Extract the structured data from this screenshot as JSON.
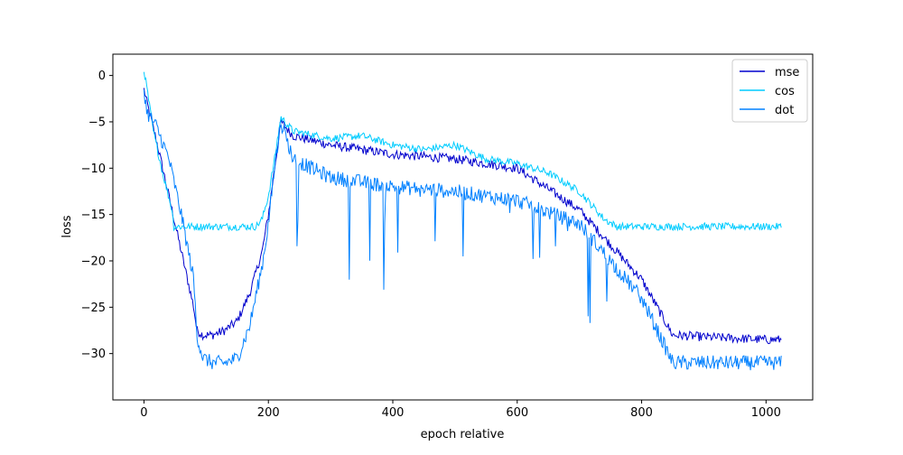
{
  "chart_data": {
    "type": "line",
    "title": "",
    "xlabel": "epoch relative",
    "ylabel": "loss",
    "xlim": [
      -50,
      1075
    ],
    "ylim": [
      -35,
      2.3
    ],
    "xticks": [
      0,
      200,
      400,
      600,
      800,
      1000
    ],
    "yticks": [
      0,
      -5,
      -10,
      -15,
      -20,
      -25,
      -30
    ],
    "grid": false,
    "legend_position": "top-right",
    "series": [
      {
        "name": "mse",
        "color": "#0000cd",
        "noise": 0.5,
        "x": [
          0,
          5,
          20,
          40,
          60,
          80,
          85,
          95,
          110,
          130,
          150,
          170,
          190,
          200,
          210,
          220,
          240,
          300,
          400,
          500,
          600,
          700,
          800,
          850,
          900,
          1000,
          1025
        ],
        "y": [
          -1.5,
          -3,
          -7,
          -13,
          -19,
          -25,
          -27.5,
          -28,
          -28,
          -27.5,
          -26.5,
          -23.5,
          -19,
          -15,
          -10,
          -5,
          -6.5,
          -7.5,
          -8.5,
          -9,
          -10,
          -14.5,
          -22,
          -28,
          -28.2,
          -28.5,
          -28.5
        ]
      },
      {
        "name": "cos",
        "color": "#00ccff",
        "noise": 0.4,
        "x": [
          0,
          5,
          15,
          30,
          45,
          48,
          180,
          190,
          200,
          210,
          220,
          240,
          300,
          350,
          400,
          450,
          500,
          550,
          600,
          650,
          700,
          740,
          760,
          780,
          1025
        ],
        "y": [
          0.6,
          -1.5,
          -6,
          -10.5,
          -14.5,
          -16.3,
          -16.3,
          -15.5,
          -13,
          -9,
          -4.5,
          -6,
          -6.8,
          -6.5,
          -7.5,
          -8,
          -7.5,
          -9,
          -9.5,
          -10.5,
          -12.5,
          -15.5,
          -16.3,
          -16.3,
          -16.3
        ]
      },
      {
        "name": "dot",
        "color": "#0080ff",
        "noise": 0.8,
        "x": [
          0,
          5,
          20,
          40,
          60,
          80,
          85,
          95,
          110,
          130,
          150,
          170,
          190,
          200,
          210,
          220,
          240,
          300,
          400,
          500,
          600,
          700,
          800,
          850,
          900,
          1000,
          1025
        ],
        "y": [
          -1.5,
          -4,
          -5.5,
          -9,
          -15,
          -22,
          -28,
          -30.5,
          -31,
          -31,
          -30.5,
          -27,
          -20.5,
          -16,
          -10,
          -5,
          -9,
          -11,
          -12,
          -12.5,
          -13.5,
          -16,
          -24,
          -31,
          -31,
          -31,
          -31
        ]
      }
    ],
    "annotations": []
  }
}
